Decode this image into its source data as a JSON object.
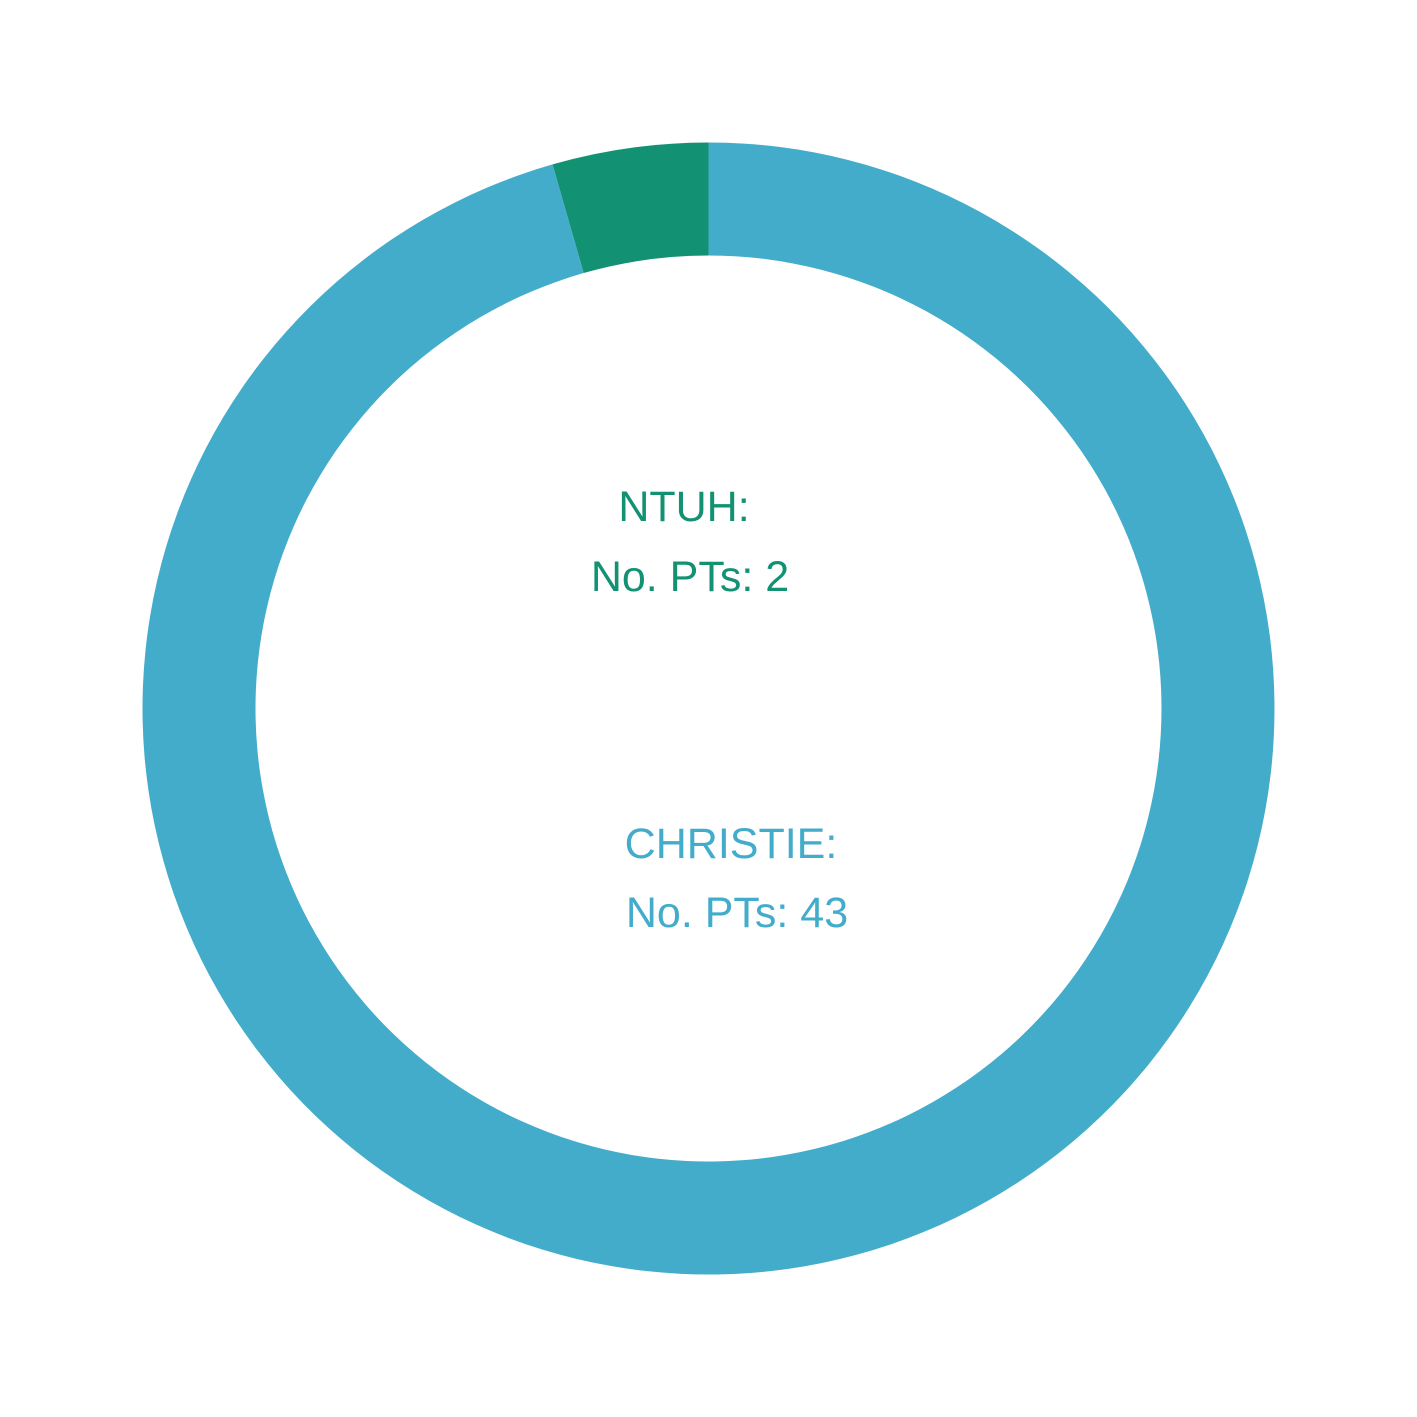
{
  "chart_data": {
    "type": "pie",
    "variant": "donut",
    "title": "",
    "slices": [
      {
        "name": "NTUH",
        "value": 2,
        "color": "#139273",
        "label_name": "NTUH:",
        "label_value": "No. PTs: 2"
      },
      {
        "name": "CHRISTIE",
        "value": 43,
        "color": "#43ACCB",
        "label_name": "CHRISTIE:",
        "label_value": "No. PTs: 43"
      }
    ],
    "legend": "none"
  }
}
